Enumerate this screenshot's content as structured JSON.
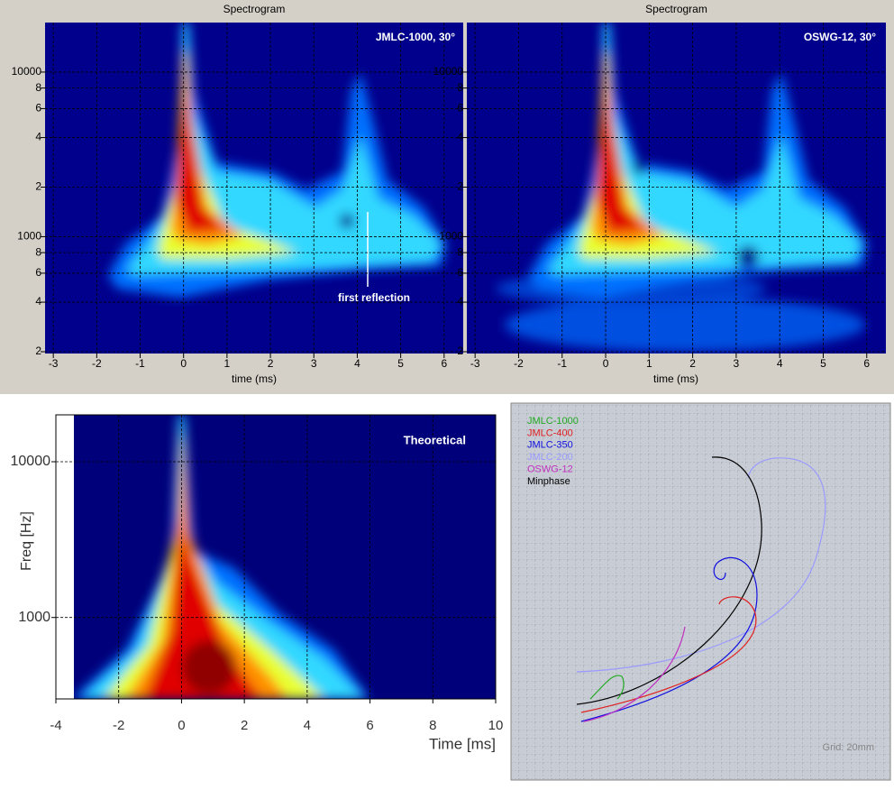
{
  "chart_data": [
    {
      "type": "heatmap",
      "title": "Spectrogram",
      "annotation": "JMLC-1000, 30°",
      "callout": "first reflection",
      "xlabel": "time (ms)",
      "xlim": [
        -3.19,
        6.44
      ],
      "xticks": [
        -3,
        -2,
        -1,
        0,
        1,
        2,
        3,
        4,
        5,
        6
      ],
      "ylim": [
        195,
        20000
      ],
      "log_y": true,
      "grid": true,
      "yticks": [
        10000,
        {
          "value": 8000,
          "label": "8"
        },
        {
          "value": 6000,
          "label": "6"
        },
        {
          "value": 4000,
          "label": "4"
        },
        {
          "value": 2000,
          "label": "2"
        },
        1000,
        {
          "value": 800,
          "label": "8"
        },
        {
          "value": 600,
          "label": "6"
        },
        {
          "value": 400,
          "label": "4"
        },
        {
          "value": 200,
          "label": "2"
        }
      ]
    },
    {
      "type": "heatmap",
      "title": "Spectrogram",
      "annotation": "OSWG-12, 30°",
      "xlabel": "time (ms)",
      "xlim": [
        -3.19,
        6.44
      ],
      "xticks": [
        -3,
        -2,
        -1,
        0,
        1,
        2,
        3,
        4,
        5,
        6
      ],
      "ylim": [
        195,
        20000
      ],
      "log_y": true,
      "grid": true,
      "yticks": [
        10000,
        {
          "value": 8000,
          "label": "8"
        },
        {
          "value": 6000,
          "label": "6"
        },
        {
          "value": 4000,
          "label": "4"
        },
        {
          "value": 2000,
          "label": "2"
        },
        1000,
        {
          "value": 800,
          "label": "8"
        },
        {
          "value": 600,
          "label": "6"
        },
        {
          "value": 400,
          "label": "4"
        },
        {
          "value": 200,
          "label": "2"
        }
      ]
    },
    {
      "type": "heatmap",
      "title": "Theoretical",
      "xlabel": "Time [ms]",
      "ylabel": "Freq [Hz]",
      "xlim": [
        -4,
        10
      ],
      "xticks": [
        -4,
        -2,
        0,
        2,
        4,
        6,
        8,
        10
      ],
      "ylim": [
        300,
        20000
      ],
      "log_y": true,
      "grid": true,
      "yticks": [
        1000,
        10000
      ]
    },
    {
      "type": "line",
      "note": "Grid: 20mm",
      "series": [
        {
          "name": "JMLC-1000",
          "color": "#22aa22"
        },
        {
          "name": "JMLC-400",
          "color": "#e02020"
        },
        {
          "name": "JMLC-350",
          "color": "#1010e0"
        },
        {
          "name": "JMLC-200",
          "color": "#9a9aff"
        },
        {
          "name": "OSWG-12",
          "color": "#c030c0"
        },
        {
          "name": "Minphase",
          "color": "#000000"
        }
      ]
    }
  ]
}
